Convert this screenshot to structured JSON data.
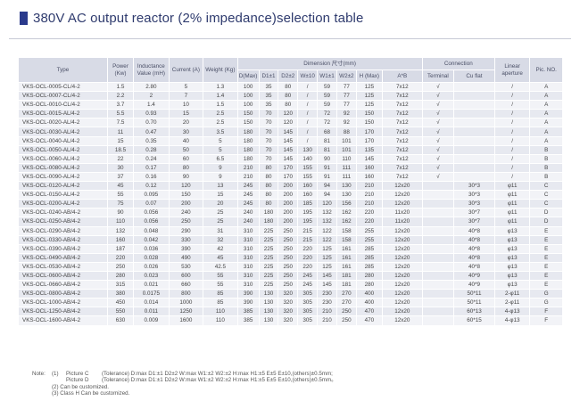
{
  "title": "380V AC output reactor (2% impedance)selection table",
  "headers": {
    "type": "Type",
    "power": "Power (Kw)",
    "inductance": "Inductance Value (mH)",
    "current": "Current (A)",
    "weight": "Weight (Kg)",
    "dimension": "Dimension 尺寸(mm)",
    "d_max": "D(Max)",
    "d1": "D1±1",
    "d2": "D2±2",
    "w": "W±10",
    "w1": "W1±1",
    "w2": "W2±2",
    "h_max": "H (Max)",
    "ab": "A*B",
    "connection": "Connection",
    "terminal": "Terminal",
    "cu_flat": "Cu flat",
    "linear_aperture": "Linear aperture",
    "pic_no": "Pic. NO."
  },
  "rows": [
    [
      "VKS-OCL-0005-CL/4-2",
      "1.5",
      "2.80",
      "5",
      "1.3",
      "100",
      "35",
      "80",
      "/",
      "59",
      "77",
      "125",
      "7x12",
      "√",
      "",
      "/",
      "A"
    ],
    [
      "VKS-OCL-0007-CL/4-2",
      "2.2",
      "2",
      "7",
      "1.4",
      "100",
      "35",
      "80",
      "/",
      "59",
      "77",
      "125",
      "7x12",
      "√",
      "",
      "/",
      "A"
    ],
    [
      "VKS-OCL-0010-CL/4-2",
      "3.7",
      "1.4",
      "10",
      "1.5",
      "100",
      "35",
      "80",
      "/",
      "59",
      "77",
      "125",
      "7x12",
      "√",
      "",
      "/",
      "A"
    ],
    [
      "VKS-OCL-0015-AL/4-2",
      "5.5",
      "0.93",
      "15",
      "2.5",
      "150",
      "70",
      "120",
      "/",
      "72",
      "92",
      "150",
      "7x12",
      "√",
      "",
      "/",
      "A"
    ],
    [
      "VKS-OCL-0020-AL/4-2",
      "7.5",
      "0.70",
      "20",
      "2.5",
      "150",
      "70",
      "120",
      "/",
      "72",
      "92",
      "150",
      "7x12",
      "√",
      "",
      "/",
      "A"
    ],
    [
      "VKS-OCL-0030-AL/4-2",
      "11",
      "0.47",
      "30",
      "3.5",
      "180",
      "70",
      "145",
      "/",
      "68",
      "88",
      "170",
      "7x12",
      "√",
      "",
      "/",
      "A"
    ],
    [
      "VKS-OCL-0040-AL/4-2",
      "15",
      "0.35",
      "40",
      "5",
      "180",
      "70",
      "145",
      "/",
      "81",
      "101",
      "170",
      "7x12",
      "√",
      "",
      "/",
      "A"
    ],
    [
      "VKS-OCL-0050-AL/4-2",
      "18.5",
      "0.28",
      "50",
      "5",
      "180",
      "70",
      "145",
      "130",
      "81",
      "101",
      "135",
      "7x12",
      "√",
      "",
      "/",
      "B"
    ],
    [
      "VKS-OCL-0060-AL/4-2",
      "22",
      "0.24",
      "60",
      "6.5",
      "180",
      "70",
      "145",
      "140",
      "90",
      "110",
      "145",
      "7x12",
      "√",
      "",
      "/",
      "B"
    ],
    [
      "VKS-OCL-0080-AL/4-2",
      "30",
      "0.17",
      "80",
      "9",
      "210",
      "80",
      "170",
      "155",
      "91",
      "111",
      "160",
      "7x12",
      "√",
      "",
      "/",
      "B"
    ],
    [
      "VKS-OCL-0090-AL/4-2",
      "37",
      "0.16",
      "90",
      "9",
      "210",
      "80",
      "170",
      "155",
      "91",
      "111",
      "160",
      "7x12",
      "√",
      "",
      "/",
      "B"
    ],
    [
      "VKS-OCL-0120-AL/4-2",
      "45",
      "0.12",
      "120",
      "13",
      "245",
      "80",
      "200",
      "160",
      "94",
      "130",
      "210",
      "12x20",
      "",
      "30*3",
      "φ11",
      "C"
    ],
    [
      "VKS-OCL-0150-AL/4-2",
      "55",
      "0.095",
      "150",
      "15",
      "245",
      "80",
      "200",
      "160",
      "94",
      "130",
      "210",
      "12x20",
      "",
      "30*3",
      "φ11",
      "C"
    ],
    [
      "VKS-OCL-0200-AL/4-2",
      "75",
      "0.07",
      "200",
      "20",
      "245",
      "80",
      "200",
      "185",
      "120",
      "156",
      "210",
      "12x20",
      "",
      "30*3",
      "φ11",
      "C"
    ],
    [
      "VKS-OCL-0240-AB/4-2",
      "90",
      "0.056",
      "240",
      "25",
      "240",
      "180",
      "200",
      "195",
      "132",
      "162",
      "220",
      "11x20",
      "",
      "30*7",
      "φ11",
      "D"
    ],
    [
      "VKS-OCL-0250-AB/4-2",
      "110",
      "0.056",
      "250",
      "25",
      "240",
      "180",
      "200",
      "195",
      "132",
      "162",
      "220",
      "11x20",
      "",
      "30*7",
      "φ11",
      "D"
    ],
    [
      "VKS-OCL-0290-AB/4-2",
      "132",
      "0.048",
      "290",
      "31",
      "310",
      "225",
      "250",
      "215",
      "122",
      "158",
      "255",
      "12x20",
      "",
      "40*8",
      "φ13",
      "E"
    ],
    [
      "VKS-OCL-0330-AB/4-2",
      "160",
      "0.042",
      "330",
      "32",
      "310",
      "225",
      "250",
      "215",
      "122",
      "158",
      "255",
      "12x20",
      "",
      "40*8",
      "φ13",
      "E"
    ],
    [
      "VKS-OCL-0390-AB/4-2",
      "187",
      "0.036",
      "390",
      "42",
      "310",
      "225",
      "250",
      "220",
      "125",
      "161",
      "285",
      "12x20",
      "",
      "40*8",
      "φ13",
      "E"
    ],
    [
      "VKS-OCL-0490-AB/4-2",
      "220",
      "0.028",
      "490",
      "45",
      "310",
      "225",
      "250",
      "220",
      "125",
      "161",
      "285",
      "12x20",
      "",
      "40*8",
      "φ13",
      "E"
    ],
    [
      "VKS-OCL-0530-AB/4-2",
      "250",
      "0.026",
      "530",
      "42.5",
      "310",
      "225",
      "250",
      "220",
      "125",
      "161",
      "285",
      "12x20",
      "",
      "40*8",
      "φ13",
      "E"
    ],
    [
      "VKS-OCL-0600-AB/4-2",
      "280",
      "0.023",
      "600",
      "55",
      "310",
      "225",
      "250",
      "245",
      "145",
      "181",
      "280",
      "12x20",
      "",
      "40*9",
      "φ13",
      "E"
    ],
    [
      "VKS-OCL-0660-AB/4-2",
      "315",
      "0.021",
      "660",
      "55",
      "310",
      "225",
      "250",
      "245",
      "145",
      "181",
      "280",
      "12x20",
      "",
      "40*9",
      "φ13",
      "E"
    ],
    [
      "VKS-OCL-0800-AB/4-2",
      "380",
      "0.0175",
      "800",
      "85",
      "390",
      "130",
      "320",
      "305",
      "230",
      "270",
      "400",
      "12x20",
      "",
      "50*11",
      "2-φ11",
      "G"
    ],
    [
      "VKS-OCL-1000-AB/4-2",
      "450",
      "0.014",
      "1000",
      "85",
      "390",
      "130",
      "320",
      "305",
      "230",
      "270",
      "400",
      "12x20",
      "",
      "50*11",
      "2-φ11",
      "G"
    ],
    [
      "VKS-OCL-1250-AB/4-2",
      "550",
      "0.011",
      "1250",
      "110",
      "385",
      "130",
      "320",
      "305",
      "210",
      "250",
      "470",
      "12x20",
      "",
      "60*13",
      "4-φ13",
      "F"
    ],
    [
      "VKS-OCL-1600-AB/4-2",
      "630",
      "0.009",
      "1600",
      "110",
      "385",
      "130",
      "320",
      "305",
      "210",
      "250",
      "470",
      "12x20",
      "",
      "60*15",
      "4-φ13",
      "F"
    ]
  ],
  "notes": {
    "label": "Note:",
    "n1_num": "(1)",
    "n1_pic_c": "Picture C",
    "n1_text_c": "(Tolerance) D:max D1:±1 D2±2 W:max W1:±2 W2:±2 H:max H1:±5 E±5 E±10,(others)±0.5mm;",
    "n1_pic_d": "Picture D",
    "n1_text_d": "(Tolerance) D:max D1:±1 D2±2 W:max W1:±2 W2:±2 H:max H1:±5 E±5 E±10,(others)±0.5mm。",
    "n2": "(2)  Can be customized.",
    "n3": "(3)  Class H Can be customized."
  }
}
